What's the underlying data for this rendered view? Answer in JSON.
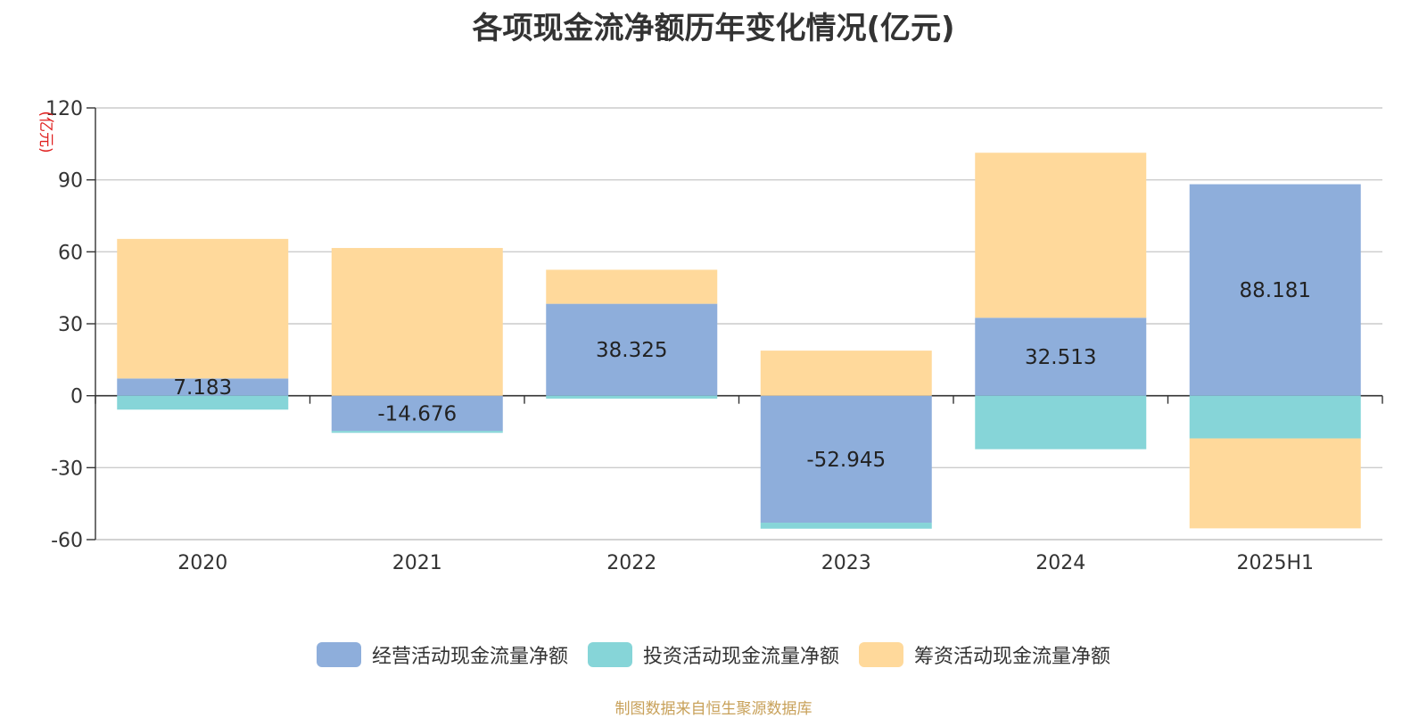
{
  "chart_data": {
    "type": "bar",
    "stacked": true,
    "title": "各项现金流净额历年变化情况(亿元)",
    "unit_label": "(亿元)",
    "categories": [
      "2020",
      "2021",
      "2022",
      "2023",
      "2024",
      "2025H1"
    ],
    "ylim": [
      -60,
      120
    ],
    "yticks": [
      120,
      90,
      60,
      30,
      0,
      -30,
      -60
    ],
    "grid": true,
    "legend_position": "bottom",
    "series": [
      {
        "name": "经营活动现金流量净额",
        "color": "#8eaedb",
        "values": [
          7.183,
          -14.676,
          38.325,
          -52.945,
          32.513,
          88.181
        ],
        "labels": [
          "7.183",
          "-14.676",
          "38.325",
          "-52.945",
          "32.513",
          "88.181"
        ]
      },
      {
        "name": "投资活动现金流量净额",
        "color": "#86d5d8",
        "values": [
          -5.8,
          -0.8,
          -1.2,
          -2.5,
          -22.3,
          -17.8
        ]
      },
      {
        "name": "筹资活动现金流量净额",
        "color": "#ffd99b",
        "values": [
          58.2,
          61.6,
          14.2,
          18.8,
          68.8,
          -37.5
        ]
      }
    ]
  },
  "source_note": "制图数据来自恒生聚源数据库"
}
